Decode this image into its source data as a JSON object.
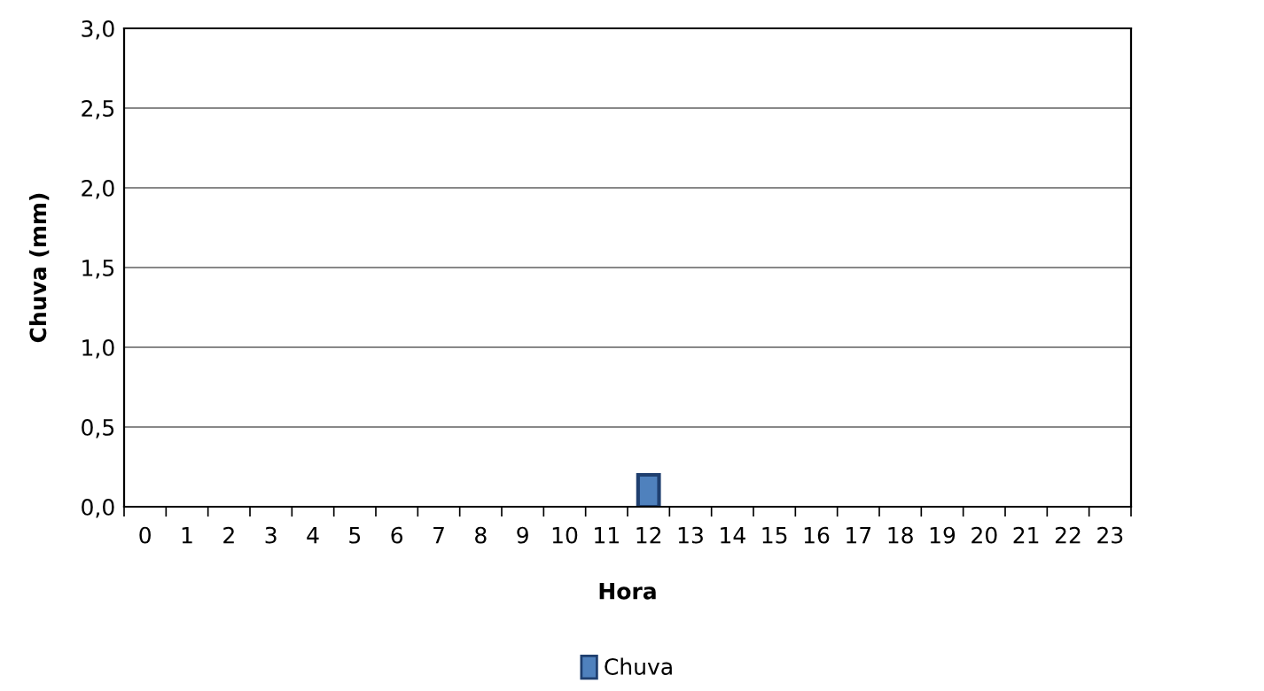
{
  "chart_data": {
    "type": "bar",
    "xlabel": "Hora",
    "ylabel": "Chuva (mm)",
    "categories": [
      "0",
      "1",
      "2",
      "3",
      "4",
      "5",
      "6",
      "7",
      "8",
      "9",
      "10",
      "11",
      "12",
      "13",
      "14",
      "15",
      "16",
      "17",
      "18",
      "19",
      "20",
      "21",
      "22",
      "23"
    ],
    "series": [
      {
        "name": "Chuva",
        "color": "#4f81bd",
        "values": [
          0,
          0,
          0,
          0,
          0,
          0,
          0,
          0,
          0,
          0,
          0,
          0,
          0.2,
          0,
          0,
          0,
          0,
          0,
          0,
          0,
          0,
          0,
          0,
          0
        ]
      }
    ],
    "ylim": [
      0,
      3
    ],
    "yticks": [
      {
        "value": 0,
        "label": "0,0"
      },
      {
        "value": 0.5,
        "label": "0,5"
      },
      {
        "value": 1,
        "label": "1,0"
      },
      {
        "value": 1.5,
        "label": "1,5"
      },
      {
        "value": 2,
        "label": "2,0"
      },
      {
        "value": 2.5,
        "label": "2,5"
      },
      {
        "value": 3,
        "label": "3,0"
      }
    ],
    "grid": "y",
    "legend": "bottom"
  }
}
